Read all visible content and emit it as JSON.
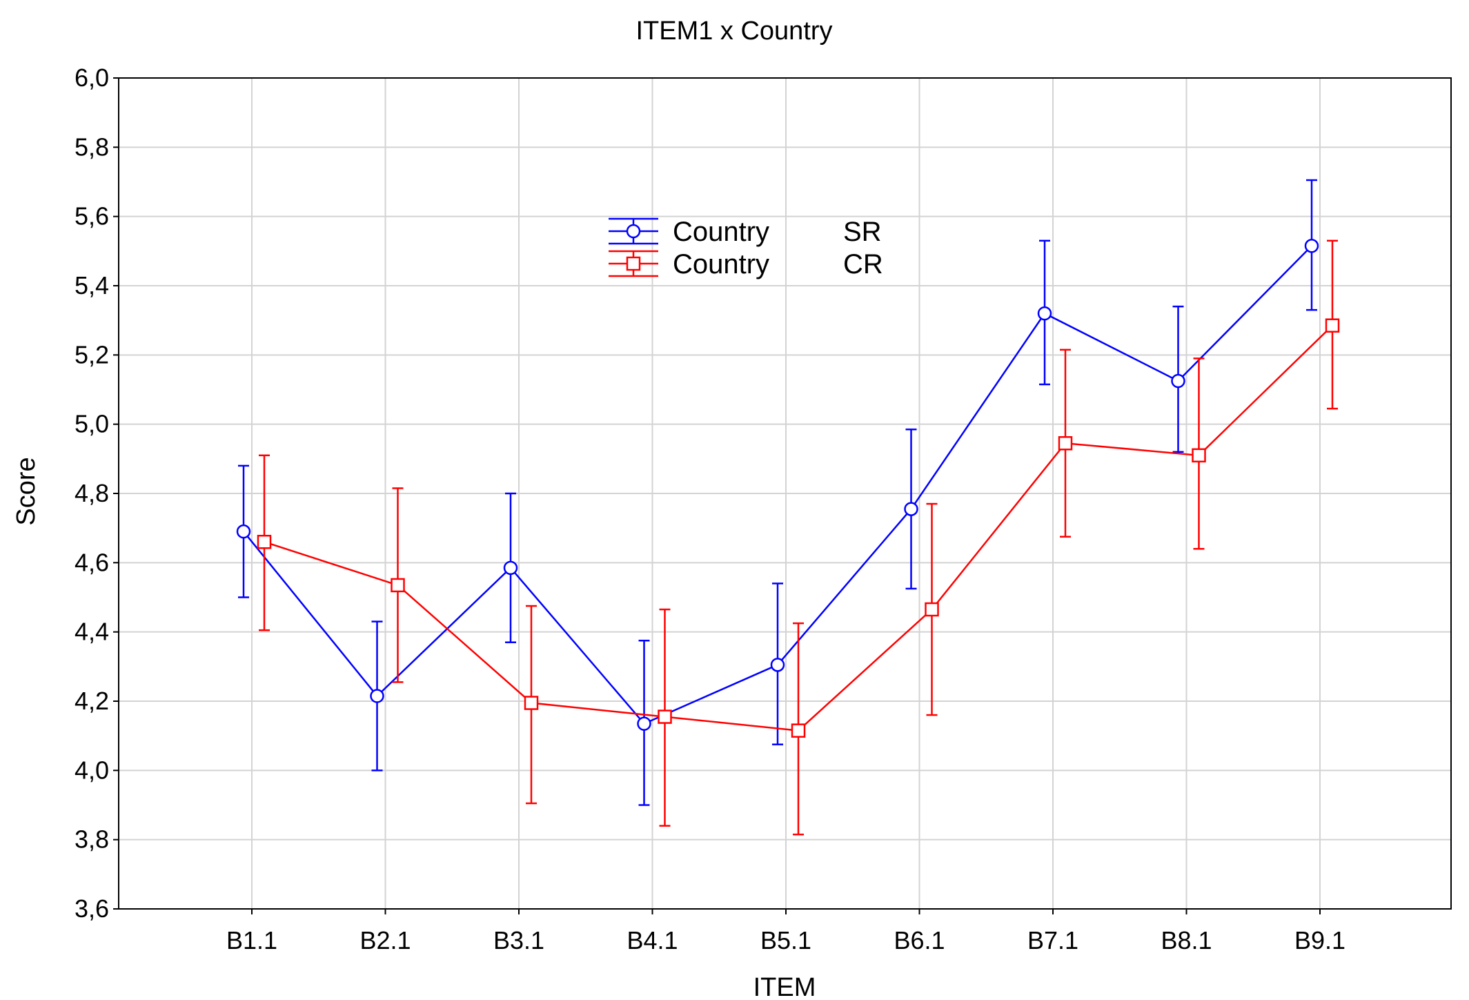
{
  "chart_data": {
    "type": "line",
    "title": "ITEM1 x Country",
    "xlabel": "ITEM",
    "ylabel": "Score",
    "categories": [
      "B1.1",
      "B2.1",
      "B3.1",
      "B4.1",
      "B5.1",
      "B6.1",
      "B7.1",
      "B8.1",
      "B9.1"
    ],
    "ylim": [
      3.6,
      6.0
    ],
    "yticks": [
      "3,6",
      "3,8",
      "4,0",
      "4,2",
      "4,4",
      "4,6",
      "4,8",
      "5,0",
      "5,2",
      "5,4",
      "5,6",
      "5,8",
      "6,0"
    ],
    "grid": true,
    "legend": "top-center",
    "series": [
      {
        "name": "Country",
        "level": "SR",
        "color": "#0000ff",
        "marker": "circle",
        "values": [
          4.69,
          4.215,
          4.585,
          4.135,
          4.305,
          4.755,
          5.32,
          5.125,
          5.515
        ],
        "lower": [
          4.5,
          4.0,
          4.37,
          3.9,
          4.075,
          4.525,
          5.115,
          4.92,
          5.33
        ],
        "upper": [
          4.88,
          4.43,
          4.8,
          4.375,
          4.54,
          4.985,
          5.53,
          5.34,
          5.705
        ]
      },
      {
        "name": "Country",
        "level": "CR",
        "color": "#ff0000",
        "marker": "square",
        "values": [
          4.66,
          4.535,
          4.195,
          4.155,
          4.115,
          4.465,
          4.945,
          4.91,
          5.285
        ],
        "lower": [
          4.405,
          4.255,
          3.905,
          3.84,
          3.815,
          4.16,
          4.675,
          4.64,
          5.045
        ],
        "upper": [
          4.91,
          4.815,
          4.475,
          4.465,
          4.425,
          4.77,
          5.215,
          5.19,
          5.53
        ]
      }
    ]
  }
}
